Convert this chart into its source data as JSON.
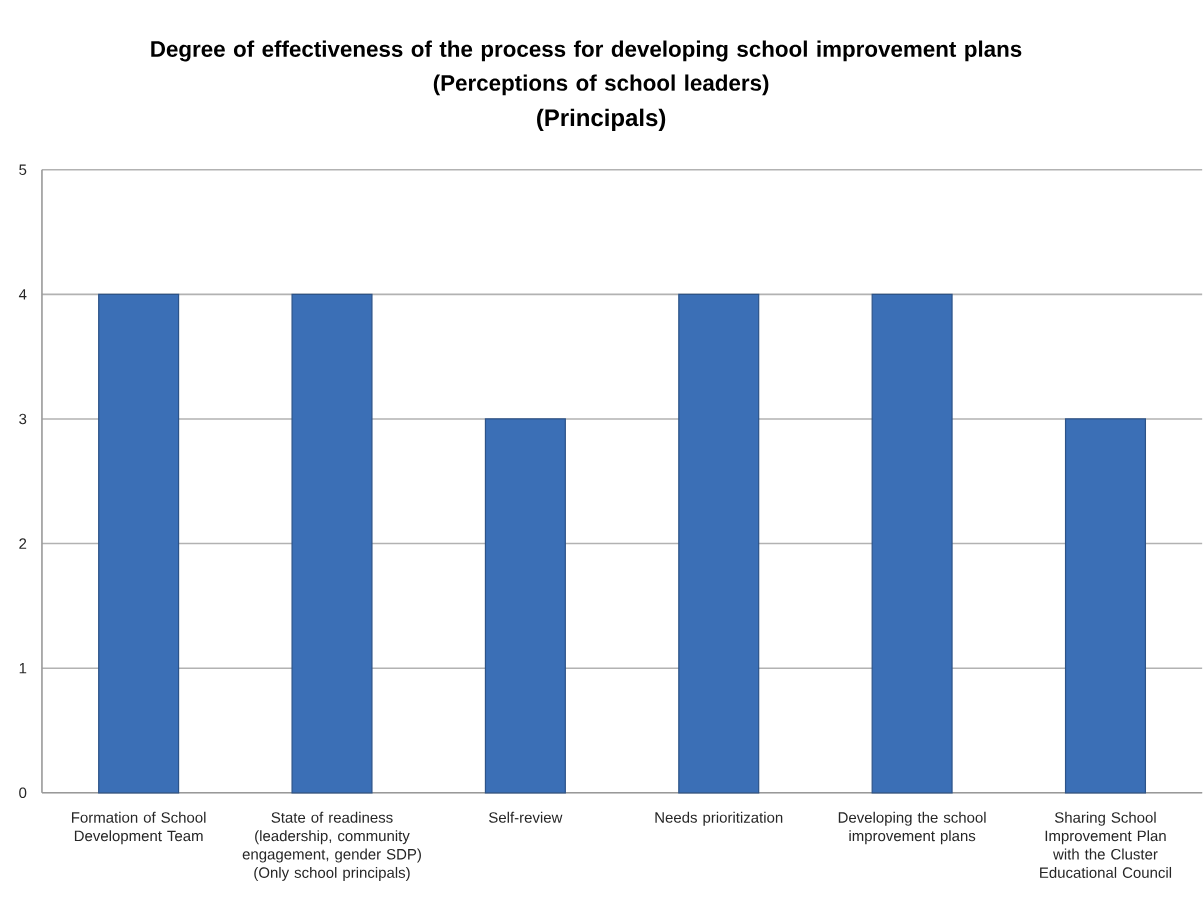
{
  "chart_data": {
    "type": "bar",
    "title": "Degree of effectiveness of the process for developing school improvement plans (Perceptions of school leaders)",
    "subtitle": "(Principals)",
    "categories": [
      "Formation of School Development Team",
      "State of readiness (leadership, community engagement, gender SDP) (Only school principals)",
      "Self-review",
      "Needs prioritization",
      "Developing the school improvement plans",
      "Sharing School Improvement Plan with the Cluster Educational Council"
    ],
    "values": [
      4,
      4,
      3,
      4,
      4,
      3
    ],
    "color": "#3b6fb6",
    "ylim": [
      0,
      5
    ],
    "yticks": [
      0,
      1,
      2,
      3,
      4,
      5
    ],
    "grid": "y"
  }
}
